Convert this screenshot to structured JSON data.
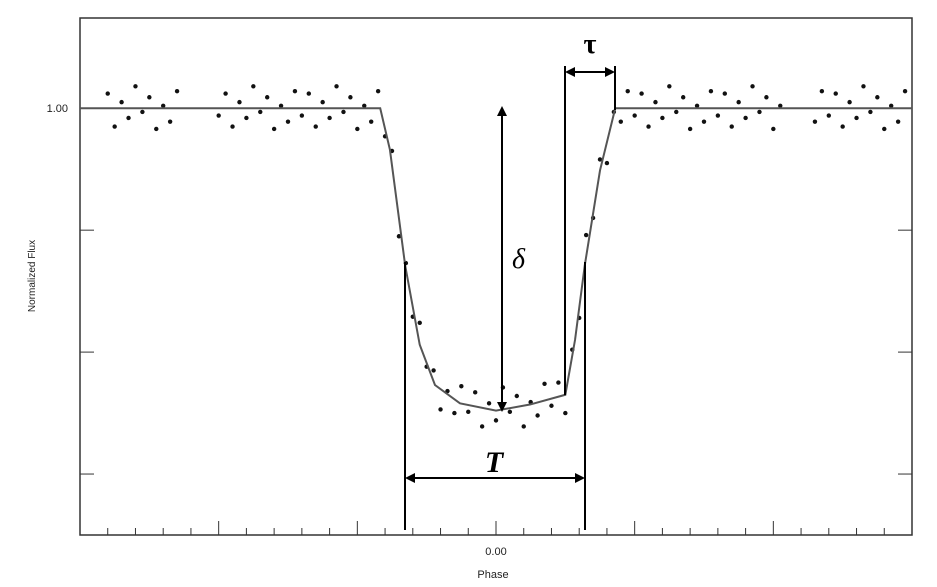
{
  "chart_data": {
    "type": "scatter",
    "ylabel": "Normalized Flux",
    "xlabel": "Phase",
    "xlim": [
      -0.06,
      0.06
    ],
    "ylim": [
      0.965,
      1.0074
    ],
    "xticks": [
      {
        "value": -0.04,
        "label": null
      },
      {
        "value": -0.02,
        "label": null
      },
      {
        "value": 0,
        "label": "0.00"
      },
      {
        "value": 0.02,
        "label": null
      },
      {
        "value": 0.04,
        "label": null
      }
    ],
    "xminorticks": [
      -0.056,
      -0.052,
      -0.048,
      -0.044,
      -0.036,
      -0.032,
      -0.028,
      -0.024,
      -0.016,
      -0.012,
      -0.008,
      -0.004,
      0.004,
      0.008,
      0.012,
      0.016,
      0.024,
      0.028,
      0.032,
      0.036,
      0.044,
      0.048,
      0.052,
      0.056
    ],
    "yticks": [
      {
        "value": 0.97,
        "label": null
      },
      {
        "value": 0.98,
        "label": null
      },
      {
        "value": 0.99,
        "label": null
      },
      {
        "value": 1,
        "label": "1.00"
      }
    ],
    "annotations": [
      "τ",
      "δ",
      "T"
    ],
    "series": [
      {
        "type": "scatter",
        "color": "#111111",
        "x": [
          -0.056,
          -0.055,
          -0.054,
          -0.053,
          -0.052,
          -0.051,
          -0.05,
          -0.049,
          -0.048,
          -0.047,
          -0.046,
          -0.04,
          -0.039,
          -0.038,
          -0.037,
          -0.036,
          -0.035,
          -0.034,
          -0.033,
          -0.032,
          -0.031,
          -0.03,
          -0.029,
          -0.028,
          -0.027,
          -0.026,
          -0.025,
          -0.024,
          -0.023,
          -0.022,
          -0.021,
          -0.02,
          -0.019,
          -0.018,
          -0.017,
          -0.016,
          -0.015,
          -0.014,
          -0.013,
          -0.012,
          -0.011,
          -0.01,
          -0.009,
          -0.008,
          -0.007,
          -0.006,
          -0.005,
          -0.004,
          -0.003,
          -0.002,
          -0.001,
          0,
          0.001,
          0.002,
          0.003,
          0.004,
          0.005,
          0.006,
          0.007,
          0.008,
          0.009,
          0.01,
          0.011,
          0.012,
          0.013,
          0.014,
          0.015,
          0.016,
          0.017,
          0.018,
          0.019,
          0.02,
          0.021,
          0.022,
          0.023,
          0.024,
          0.025,
          0.026,
          0.027,
          0.028,
          0.029,
          0.03,
          0.031,
          0.032,
          0.033,
          0.034,
          0.035,
          0.036,
          0.037,
          0.038,
          0.039,
          0.04,
          0.041,
          0.046,
          0.047,
          0.048,
          0.049,
          0.05,
          0.051,
          0.052,
          0.053,
          0.054,
          0.055,
          0.056,
          0.057,
          0.058,
          0.059
        ],
        "values": [
          1.0012,
          0.9985,
          1.0005,
          0.9992,
          1.0018,
          0.9997,
          1.0009,
          0.9983,
          1.0002,
          0.9989,
          1.0014,
          0.9994,
          1.0012,
          0.9985,
          1.0005,
          0.9992,
          1.0018,
          0.9997,
          1.0009,
          0.9983,
          1.0002,
          0.9989,
          1.0014,
          0.9994,
          1.0012,
          0.9985,
          1.0005,
          0.9992,
          1.0018,
          0.9997,
          1.0009,
          0.9983,
          1.0002,
          0.9989,
          1.0014,
          0.9977,
          0.9965,
          0.9895,
          0.9873,
          0.9829,
          0.9824,
          0.9788,
          0.9785,
          0.9753,
          0.9768,
          0.975,
          0.9772,
          0.9751,
          0.9767,
          0.9739,
          0.9758,
          0.9744,
          0.9771,
          0.9751,
          0.9764,
          0.9739,
          0.9759,
          0.9748,
          0.9774,
          0.9756,
          0.9775,
          0.975,
          0.9802,
          0.9828,
          0.9896,
          0.991,
          0.9958,
          0.9955,
          0.9997,
          0.9989,
          1.0014,
          0.9994,
          1.0012,
          0.9985,
          1.0005,
          0.9992,
          1.0018,
          0.9997,
          1.0009,
          0.9983,
          1.0002,
          0.9989,
          1.0014,
          0.9994,
          1.0012,
          0.9985,
          1.0005,
          0.9992,
          1.0018,
          0.9997,
          1.0009,
          0.9983,
          1.0002,
          0.9989,
          1.0014,
          0.9994,
          1.0012,
          0.9985,
          1.0005,
          0.9992,
          1.0018,
          0.9997,
          1.0009,
          0.9983,
          1.0002,
          0.9989,
          1.0014
        ]
      },
      {
        "type": "line",
        "color": "#555555",
        "x": [
          -0.06,
          -0.0167,
          -0.0153,
          -0.0131,
          -0.011,
          -0.0088,
          -0.0052,
          0,
          0.0049,
          0.01,
          0.0114,
          0.0128,
          0.015,
          0.0172,
          0.06
        ],
        "values": [
          1,
          1,
          0.9966,
          0.9871,
          0.9806,
          0.9773,
          0.9758,
          0.9752,
          0.9757,
          0.9765,
          0.981,
          0.9871,
          0.9949,
          1,
          1
        ]
      }
    ]
  }
}
